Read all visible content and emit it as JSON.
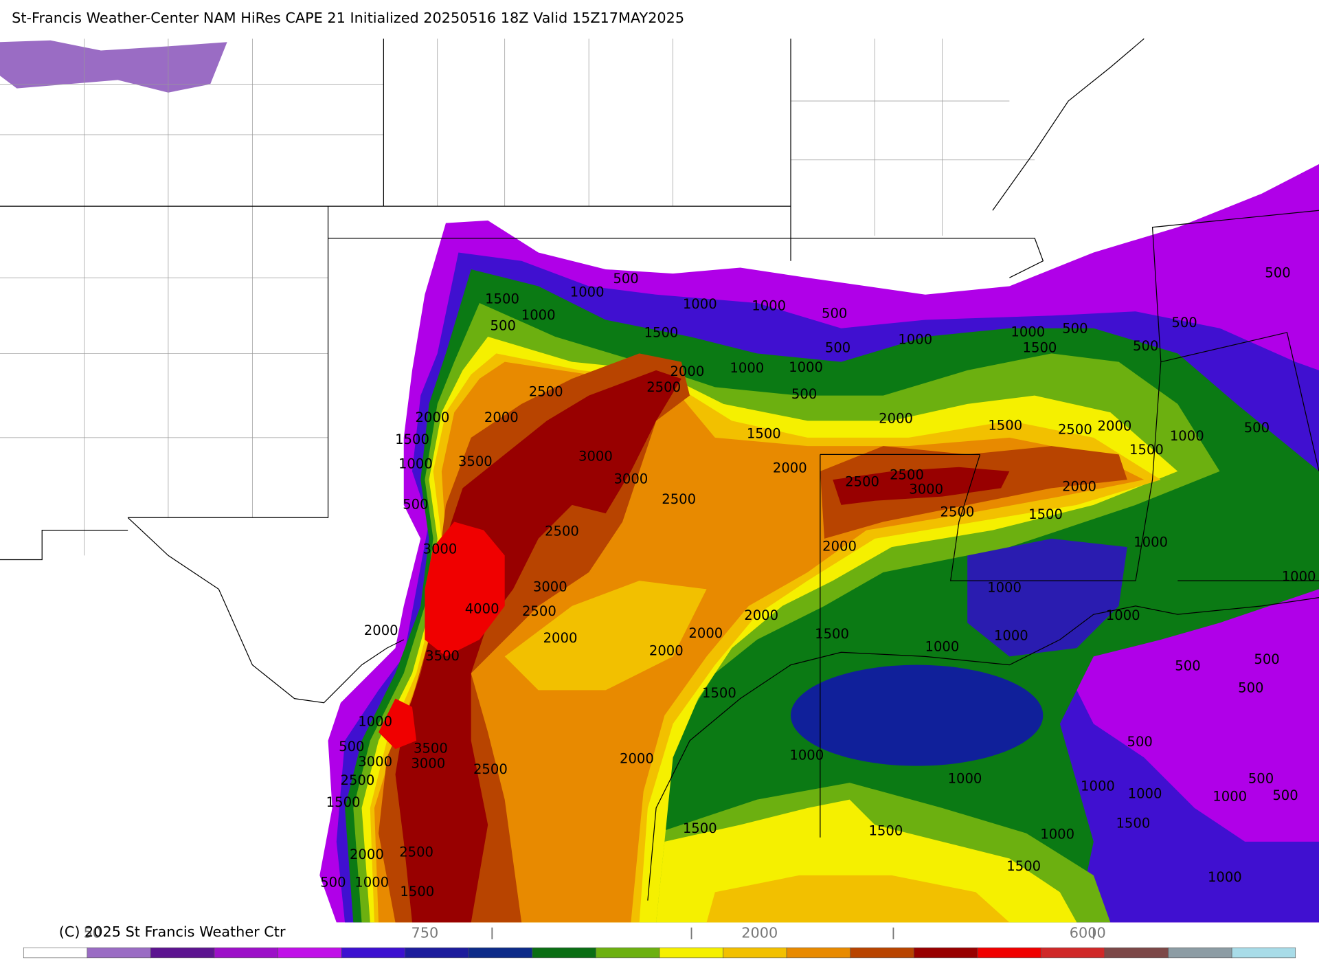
{
  "header": {
    "title": "St-Francis Weather-Center NAM HiRes CAPE  21 Initialized 20250516 18Z Valid 15Z17MAY2025"
  },
  "footer": {
    "copyright": "(C) 2025 St Francis Weather Ctr"
  },
  "colorbar": {
    "colors": [
      "#ffffff",
      "#9a6cc4",
      "#5c1490",
      "#9c10c8",
      "#c010e8",
      "#3c10d0",
      "#1c1c9c",
      "#0c2a88",
      "#0a6e14",
      "#6cb010",
      "#f5f000",
      "#f2c000",
      "#e88a00",
      "#b84400",
      "#980000",
      "#f00000",
      "#d02828",
      "#7c4848",
      "#8c9ca4",
      "#a8dce8"
    ],
    "labels": [
      "50",
      "750",
      "2000",
      "6000"
    ]
  },
  "map": {
    "contour_labels": [
      "500",
      "1500",
      "1000",
      "1000",
      "500",
      "1000",
      "1000",
      "500",
      "1500",
      "500",
      "1000",
      "1000",
      "500",
      "1500",
      "500",
      "500",
      "500",
      "2000",
      "1000",
      "1000",
      "500",
      "2500",
      "2500",
      "2000",
      "2000",
      "1500",
      "1500",
      "2000",
      "1500",
      "2500",
      "2000",
      "1500",
      "1000",
      "500",
      "3500",
      "3000",
      "1000",
      "2000",
      "3000",
      "2500",
      "2500",
      "3000",
      "2500",
      "2500",
      "2000",
      "500",
      "1500",
      "2500",
      "3000",
      "2000",
      "1000",
      "1000",
      "3000",
      "1000",
      "4000",
      "2500",
      "2000",
      "1000",
      "2000",
      "2000",
      "2000",
      "2000",
      "1500",
      "1000",
      "1000",
      "3500",
      "500",
      "500",
      "500",
      "1500",
      "1000",
      "500",
      "500",
      "3500",
      "1000",
      "3000",
      "3000",
      "2500",
      "2000",
      "2500",
      "1000",
      "500",
      "1000",
      "1000",
      "1000",
      "500",
      "1500",
      "1500",
      "1500",
      "1500",
      "1000",
      "2000",
      "2500",
      "1500",
      "1000",
      "500",
      "1000",
      "1500"
    ]
  }
}
